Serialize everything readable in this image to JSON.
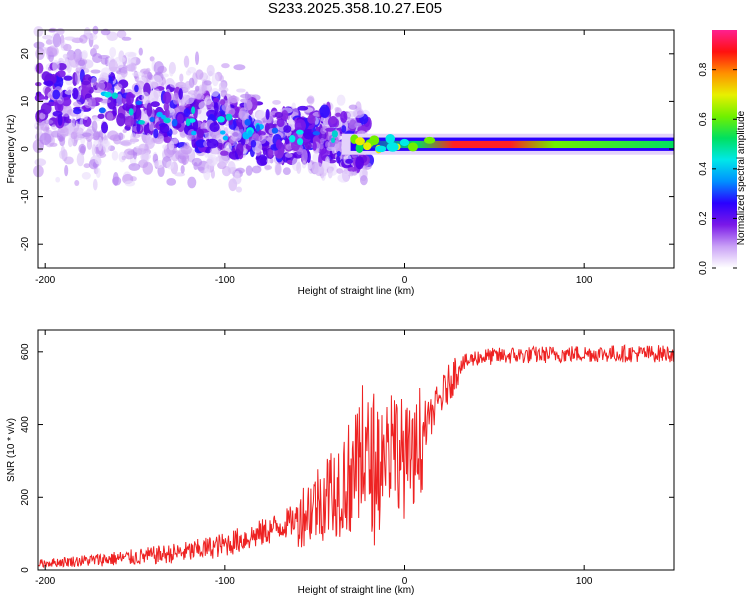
{
  "title": "S233.2025.358.10.27.E05",
  "chart_data": [
    {
      "type": "heatmap",
      "xlabel": "Height of straight line (km)",
      "ylabel": "Frequency (Hz)",
      "xlim": [
        -204,
        150
      ],
      "ylim": [
        -25,
        25
      ],
      "xticks": [
        -200,
        -100,
        0,
        100
      ],
      "yticks": [
        -20,
        -10,
        0,
        10,
        20
      ],
      "colorbar": {
        "label": "Normalized spectral amplitude",
        "range": [
          0,
          1
        ],
        "ticks": [
          "0.0",
          "0.2",
          "0.4",
          "0.6",
          "0.8"
        ],
        "colors": [
          "#ffffff",
          "#c9a0f6",
          "#7a18e8",
          "#2a00ff",
          "#0090ff",
          "#00e8e8",
          "#00e060",
          "#70f000",
          "#e8f000",
          "#ff9000",
          "#ff1010",
          "#ff2090"
        ]
      },
      "ridge": [
        {
          "x": -160,
          "freq": 9
        },
        {
          "x": -120,
          "freq": 6
        },
        {
          "x": -80,
          "freq": 3.5
        },
        {
          "x": -40,
          "freq": 2.5
        },
        {
          "x": -20,
          "freq": 1
        },
        {
          "x": 0,
          "freq": 1
        },
        {
          "x": 50,
          "freq": 1
        },
        {
          "x": 150,
          "freq": 1
        }
      ]
    },
    {
      "type": "line",
      "xlabel": "Height of straight line (km)",
      "ylabel": "SNR (10 * v/v)",
      "xlim": [
        -204,
        150
      ],
      "ylim": [
        0,
        660
      ],
      "xticks": [
        -200,
        -100,
        0,
        100
      ],
      "yticks": [
        0,
        200,
        400,
        600
      ],
      "color": "#ee2222",
      "trend": [
        {
          "x": -204,
          "snr": 18
        },
        {
          "x": -180,
          "snr": 25
        },
        {
          "x": -150,
          "snr": 35
        },
        {
          "x": -120,
          "snr": 50
        },
        {
          "x": -100,
          "snr": 70
        },
        {
          "x": -80,
          "snr": 100
        },
        {
          "x": -60,
          "snr": 140
        },
        {
          "x": -45,
          "snr": 200
        },
        {
          "x": -35,
          "snr": 240
        },
        {
          "x": -25,
          "snr": 275
        },
        {
          "x": -15,
          "snr": 310
        },
        {
          "x": -5,
          "snr": 350
        },
        {
          "x": 0,
          "snr": 300
        },
        {
          "x": 5,
          "snr": 280
        },
        {
          "x": 10,
          "snr": 380
        },
        {
          "x": 20,
          "snr": 470
        },
        {
          "x": 30,
          "snr": 560
        },
        {
          "x": 40,
          "snr": 585
        },
        {
          "x": 60,
          "snr": 590
        },
        {
          "x": 100,
          "snr": 595
        },
        {
          "x": 150,
          "snr": 595
        }
      ]
    }
  ]
}
